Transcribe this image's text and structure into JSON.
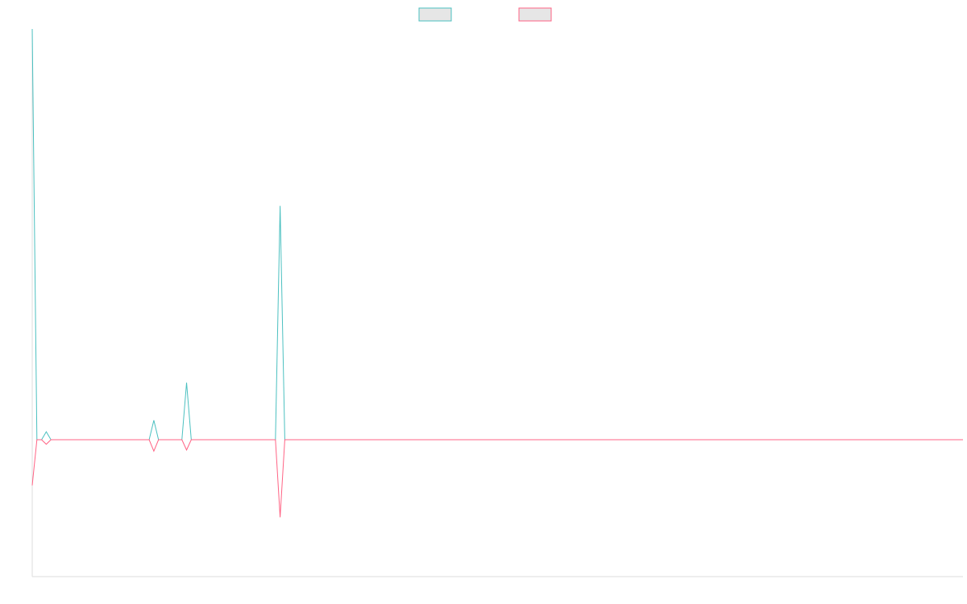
{
  "chart_data": {
    "type": "line",
    "x_count": 200,
    "ylim": [
      -1200,
      3600
    ],
    "grid": false,
    "legend_position": "top-center",
    "series": [
      {
        "name": "",
        "color": "#4bc0c0",
        "points": [
          [
            0,
            3600
          ],
          [
            1,
            0
          ],
          [
            2,
            0
          ],
          [
            3,
            70
          ],
          [
            4,
            0
          ],
          [
            5,
            0
          ],
          [
            25,
            0
          ],
          [
            26,
            170
          ],
          [
            27,
            0
          ],
          [
            32,
            0
          ],
          [
            33,
            500
          ],
          [
            34,
            0
          ],
          [
            52,
            0
          ],
          [
            53,
            2050
          ],
          [
            54,
            0
          ],
          [
            199,
            0
          ]
        ]
      },
      {
        "name": "",
        "color": "#ff6384",
        "points": [
          [
            0,
            -400
          ],
          [
            1,
            0
          ],
          [
            2,
            0
          ],
          [
            3,
            -40
          ],
          [
            4,
            0
          ],
          [
            5,
            0
          ],
          [
            25,
            0
          ],
          [
            26,
            -100
          ],
          [
            27,
            0
          ],
          [
            32,
            0
          ],
          [
            33,
            -90
          ],
          [
            34,
            0
          ],
          [
            52,
            0
          ],
          [
            53,
            -680
          ],
          [
            54,
            0
          ],
          [
            199,
            0
          ]
        ]
      }
    ]
  }
}
